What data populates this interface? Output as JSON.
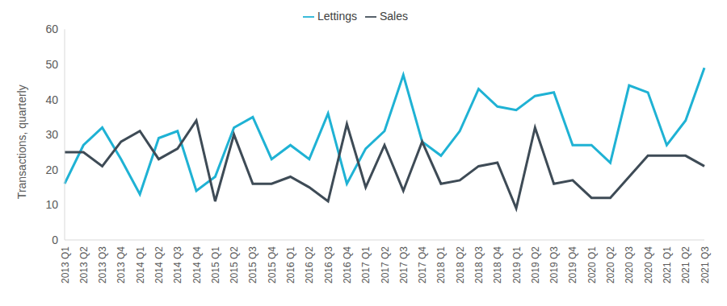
{
  "chart_data": {
    "type": "line",
    "y_label": "Transactions, quarterly",
    "categories": [
      "2013 Q1",
      "2013 Q2",
      "2013 Q3",
      "2013 Q4",
      "2014 Q1",
      "2014 Q2",
      "2014 Q3",
      "2014 Q4",
      "2015 Q1",
      "2015 Q2",
      "2015 Q3",
      "2015 Q4",
      "2016 Q1",
      "2016 Q2",
      "2016 Q3",
      "2016 Q4",
      "2017 Q1",
      "2017 Q2",
      "2017 Q3",
      "2017 Q4",
      "2018 Q1",
      "2018 Q2",
      "2018 Q3",
      "2018 Q4",
      "2019 Q1",
      "2019 Q2",
      "2019 Q3",
      "2019 Q4",
      "2020 Q1",
      "2020 Q2",
      "2020 Q3",
      "2020 Q4",
      "2021 Q1",
      "2021 Q2",
      "2021 Q3"
    ],
    "series": [
      {
        "name": "Lettings",
        "color": "#1fb2d4",
        "values": [
          16,
          27,
          32,
          23,
          13,
          29,
          31,
          14,
          18,
          32,
          35,
          23,
          27,
          23,
          36,
          16,
          26,
          31,
          47,
          28,
          24,
          31,
          43,
          38,
          37,
          41,
          42,
          27,
          27,
          22,
          44,
          42,
          27,
          34,
          49
        ]
      },
      {
        "name": "Sales",
        "color": "#3e4b56",
        "values": [
          25,
          25,
          21,
          28,
          31,
          23,
          26,
          34,
          11,
          30,
          16,
          16,
          18,
          15,
          11,
          33,
          15,
          27,
          14,
          28,
          16,
          17,
          21,
          22,
          9,
          32,
          16,
          17,
          12,
          12,
          18,
          24,
          24,
          24,
          21
        ]
      }
    ],
    "ylim": [
      0,
      60
    ],
    "yticks": [
      0,
      10,
      20,
      30,
      40,
      50,
      60
    ],
    "grid": false,
    "legend": "top"
  }
}
